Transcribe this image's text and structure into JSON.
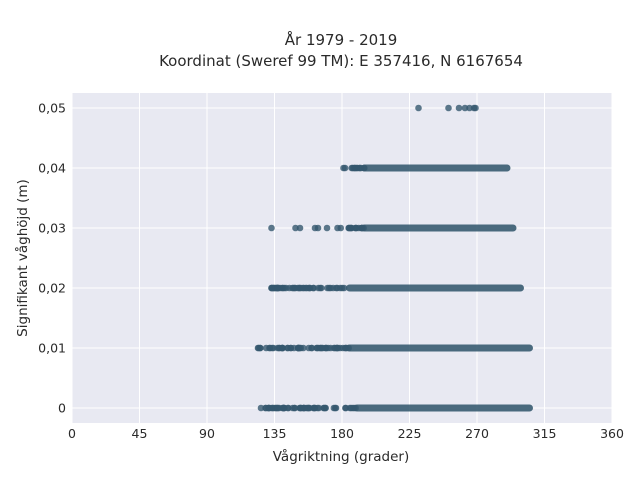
{
  "chart_data": {
    "type": "scatter",
    "title_lines": [
      "År 1979 - 2019",
      "Koordinat (Sweref 99 TM): E 357416, N 6167654"
    ],
    "xlabel": "Vågriktning (grader)",
    "ylabel": "Signifikant våghöjd (m)",
    "xlim": [
      0,
      360
    ],
    "ylim": [
      -0.0025,
      0.0525
    ],
    "x_ticks": [
      {
        "value": 0,
        "label": "0"
      },
      {
        "value": 45,
        "label": "45"
      },
      {
        "value": 90,
        "label": "90"
      },
      {
        "value": 135,
        "label": "135"
      },
      {
        "value": 180,
        "label": "180"
      },
      {
        "value": 225,
        "label": "225"
      },
      {
        "value": 270,
        "label": "270"
      },
      {
        "value": 315,
        "label": "315"
      },
      {
        "value": 360,
        "label": "360"
      }
    ],
    "y_ticks": [
      {
        "value": 0,
        "label": "0"
      },
      {
        "value": 0.01,
        "label": "0,01"
      },
      {
        "value": 0.02,
        "label": "0,02"
      },
      {
        "value": 0.03,
        "label": "0,03"
      },
      {
        "value": 0.04,
        "label": "0,04"
      },
      {
        "value": 0.05,
        "label": "0,05"
      }
    ],
    "grid": true,
    "marker_color": "#34586e",
    "background_color": "#e8e9f2",
    "grid_color": "#ffffff",
    "point_groups": [
      {
        "y": 0,
        "x_start": 126,
        "x_dense_start": 190,
        "x_end": 305
      },
      {
        "y": 0.01,
        "x_start": 124,
        "x_dense_start": 185,
        "x_end": 305
      },
      {
        "y": 0.02,
        "x_start": 133,
        "x_dense_start": 185,
        "x_end": 299
      },
      {
        "y": 0.03,
        "x_start": 177,
        "x_dense_start": 195,
        "x_end": 294
      },
      {
        "y": 0.04,
        "x_start": 181,
        "x_dense_start": 195,
        "x_end": 290
      }
    ],
    "points": [
      {
        "x": 133,
        "y": 0.03
      },
      {
        "x": 149,
        "y": 0.03
      },
      {
        "x": 152,
        "y": 0.03
      },
      {
        "x": 162,
        "y": 0.03
      },
      {
        "x": 164,
        "y": 0.03
      },
      {
        "x": 170,
        "y": 0.03
      },
      {
        "x": 231,
        "y": 0.05
      },
      {
        "x": 251,
        "y": 0.05
      },
      {
        "x": 258,
        "y": 0.05
      },
      {
        "x": 262,
        "y": 0.05
      },
      {
        "x": 265,
        "y": 0.05
      },
      {
        "x": 268,
        "y": 0.05
      },
      {
        "x": 269,
        "y": 0.05
      }
    ]
  }
}
